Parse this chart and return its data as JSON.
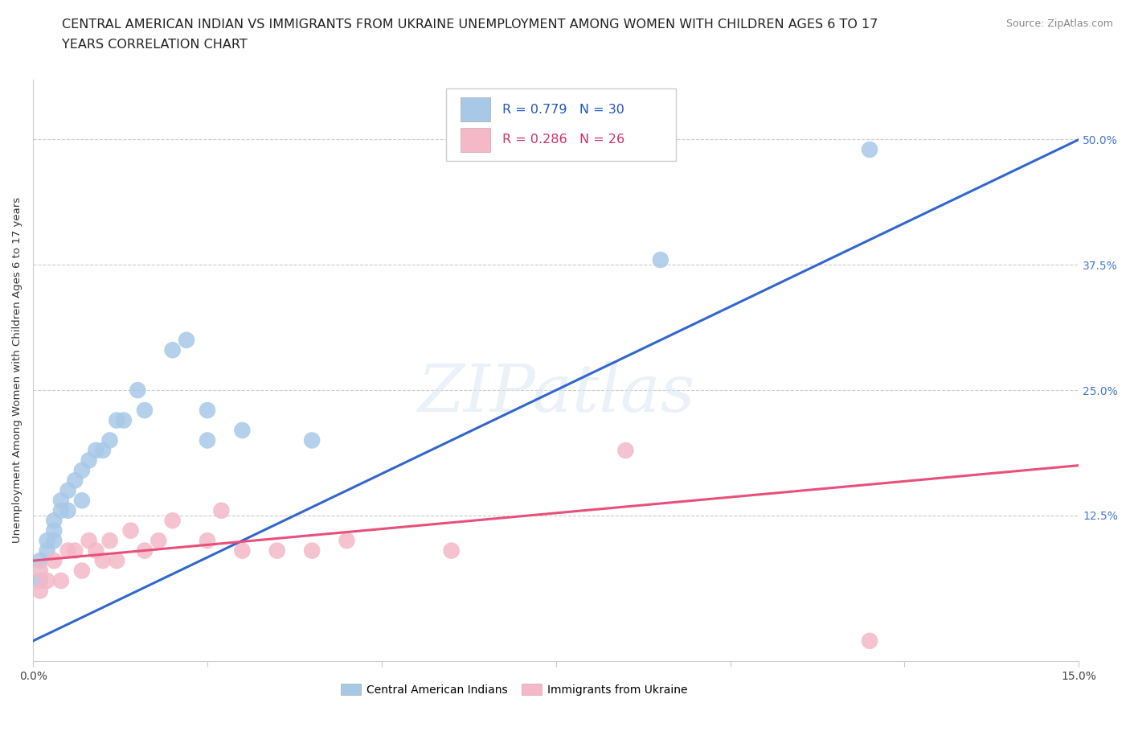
{
  "title_line1": "CENTRAL AMERICAN INDIAN VS IMMIGRANTS FROM UKRAINE UNEMPLOYMENT AMONG WOMEN WITH CHILDREN AGES 6 TO 17",
  "title_line2": "YEARS CORRELATION CHART",
  "source": "Source: ZipAtlas.com",
  "ylabel": "Unemployment Among Women with Children Ages 6 to 17 years",
  "xlim": [
    0.0,
    0.15
  ],
  "ylim": [
    -0.02,
    0.56
  ],
  "ytick_positions": [
    0.125,
    0.25,
    0.375,
    0.5
  ],
  "yticklabels_right": [
    "12.5%",
    "25.0%",
    "37.5%",
    "50.0%"
  ],
  "xtick_positions": [
    0.0,
    0.025,
    0.05,
    0.075,
    0.1,
    0.125,
    0.15
  ],
  "xticklabels": [
    "0.0%",
    "",
    "",
    "",
    "",
    "",
    "15.0%"
  ],
  "blue_color": "#a8c8e8",
  "pink_color": "#f4b8c8",
  "blue_line_color": "#3366cc",
  "pink_line_color": "#e8507a",
  "watermark": "ZIPatlas",
  "legend_label1": "Central American Indians",
  "legend_label2": "Immigrants from Ukraine",
  "blue_scatter_x": [
    0.001,
    0.001,
    0.002,
    0.002,
    0.003,
    0.003,
    0.003,
    0.004,
    0.004,
    0.005,
    0.005,
    0.006,
    0.007,
    0.007,
    0.008,
    0.009,
    0.01,
    0.011,
    0.012,
    0.013,
    0.015,
    0.016,
    0.02,
    0.022,
    0.025,
    0.025,
    0.03,
    0.04,
    0.09,
    0.12
  ],
  "blue_scatter_y": [
    0.06,
    0.08,
    0.09,
    0.1,
    0.1,
    0.11,
    0.12,
    0.13,
    0.14,
    0.13,
    0.15,
    0.16,
    0.14,
    0.17,
    0.18,
    0.19,
    0.19,
    0.2,
    0.22,
    0.22,
    0.25,
    0.23,
    0.29,
    0.3,
    0.2,
    0.23,
    0.21,
    0.2,
    0.38,
    0.49
  ],
  "pink_scatter_x": [
    0.001,
    0.001,
    0.002,
    0.003,
    0.004,
    0.005,
    0.006,
    0.007,
    0.008,
    0.009,
    0.01,
    0.011,
    0.012,
    0.014,
    0.016,
    0.018,
    0.02,
    0.025,
    0.027,
    0.03,
    0.035,
    0.04,
    0.045,
    0.06,
    0.085,
    0.12
  ],
  "pink_scatter_y": [
    0.05,
    0.07,
    0.06,
    0.08,
    0.06,
    0.09,
    0.09,
    0.07,
    0.1,
    0.09,
    0.08,
    0.1,
    0.08,
    0.11,
    0.09,
    0.1,
    0.12,
    0.1,
    0.13,
    0.09,
    0.09,
    0.09,
    0.1,
    0.09,
    0.19,
    0.0
  ],
  "title_fontsize": 11.5,
  "tick_fontsize": 10,
  "source_fontsize": 9
}
